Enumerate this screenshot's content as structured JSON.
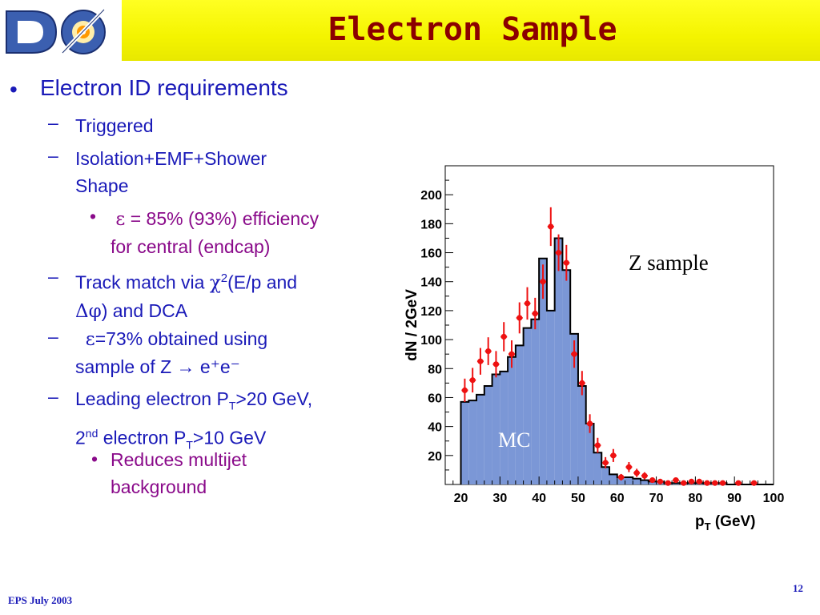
{
  "header": {
    "title": "Electron Sample",
    "logo_text": "DØ"
  },
  "bullets": {
    "main": "Electron ID requirements",
    "triggered": "Triggered",
    "isolation_line1": "Isolation+EMF+Shower",
    "isolation_line2": "Shape",
    "efficiency_symbol": "ε",
    "efficiency_line1": " = 85% (93%) efficiency",
    "efficiency_line2": "for central (endcap)",
    "track_prefix": "Track match via ",
    "track_chi": "χ",
    "track_sup": "2",
    "track_suffix": "(E/p and",
    "track_delta": "Δφ",
    "track_line2_suffix": ") and DCA",
    "eff73_symbol": "ε",
    "eff73_line1": "=73% obtained using",
    "eff73_line2": "sample of Z → e⁺e⁻",
    "leading_line1_a": "Leading electron P",
    "leading_line1_sub": "T",
    "leading_line1_b": ">20 GeV,",
    "leading_line2_a": "2",
    "leading_line2_sup": "nd",
    "leading_line2_b": " electron P",
    "leading_line2_sub": "T",
    "leading_line2_c": ">10 GeV",
    "reduces_line1": "Reduces multijet",
    "reduces_line2": "background"
  },
  "footer": {
    "left": "EPS July 2003",
    "page": "12"
  },
  "chart_data": {
    "type": "bar",
    "ylabel": "dN / 2GeV",
    "xlabel": "p",
    "xlabel_sub": "T",
    "xlabel_unit": " (GeV)",
    "xlim": [
      16,
      100
    ],
    "ylim": [
      0,
      220
    ],
    "x_ticks": [
      20,
      30,
      40,
      50,
      60,
      70,
      80,
      90,
      100
    ],
    "y_ticks": [
      20,
      40,
      60,
      80,
      100,
      120,
      140,
      160,
      180,
      200
    ],
    "annotations": {
      "z_sample": "Z sample",
      "mc": "MC"
    },
    "colors": {
      "histogram_fill": "#7b97d6",
      "data_points": "#ee1111",
      "outline": "#000000"
    },
    "series": [
      {
        "name": "MC",
        "kind": "histogram",
        "bin_edges": [
          20,
          22,
          24,
          26,
          28,
          30,
          32,
          34,
          36,
          38,
          40,
          42,
          44,
          46,
          48,
          50,
          52,
          54,
          56,
          58,
          60,
          62,
          64,
          66,
          68,
          70,
          72,
          74,
          76,
          78,
          80,
          82,
          84,
          86,
          88,
          90,
          92,
          94,
          96,
          98,
          100
        ],
        "values": [
          57,
          58,
          62,
          68,
          76,
          78,
          88,
          96,
          108,
          114,
          156,
          120,
          170,
          148,
          104,
          68,
          42,
          22,
          12,
          7,
          5,
          5,
          4,
          3,
          2,
          2,
          1,
          1,
          1,
          1,
          1,
          1,
          1,
          1,
          0,
          0,
          0,
          0,
          0,
          0
        ]
      },
      {
        "name": "Z sample",
        "kind": "points",
        "x": [
          21,
          23,
          25,
          27,
          29,
          31,
          33,
          35,
          37,
          39,
          41,
          43,
          45,
          47,
          49,
          51,
          53,
          55,
          57,
          59,
          61,
          63,
          65,
          67,
          69,
          71,
          73,
          75,
          77,
          79,
          81,
          83,
          85,
          87,
          91,
          95
        ],
        "y": [
          65,
          72,
          85,
          92,
          83,
          102,
          90,
          115,
          125,
          118,
          140,
          178,
          160,
          153,
          90,
          70,
          42,
          27,
          15,
          20,
          5,
          12,
          8,
          6,
          3,
          2,
          1,
          3,
          1,
          2,
          2,
          1,
          1,
          1,
          1,
          1
        ]
      }
    ]
  }
}
